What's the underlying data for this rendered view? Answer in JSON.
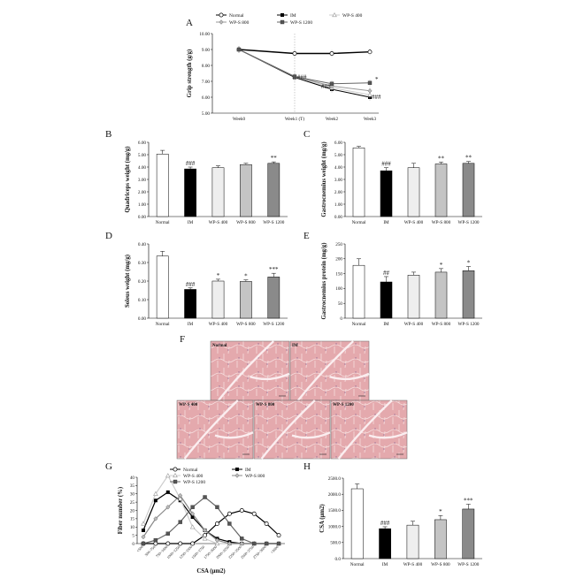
{
  "panels": {
    "A": {
      "letter": "A"
    },
    "B": {
      "letter": "B"
    },
    "C": {
      "letter": "C"
    },
    "D": {
      "letter": "D"
    },
    "E": {
      "letter": "E"
    },
    "F": {
      "letter": "F"
    },
    "G": {
      "letter": "G"
    },
    "H": {
      "letter": "H"
    }
  },
  "histology": {
    "letter": "F",
    "labels": [
      "Normal",
      "IM",
      "WP-S 400",
      "WP-S 800",
      "WP-S 1200"
    ]
  },
  "chart_data": [
    {
      "id": "A",
      "type": "line",
      "ylabel": "Grip strength (g/g)",
      "x": [
        "Week0",
        "Week1 (T)",
        "Week2",
        "Week3"
      ],
      "ylim": [
        5.0,
        10.0
      ],
      "yticks": [
        "5.00",
        "6.00",
        "7.00",
        "8.00",
        "9.00",
        "10.00"
      ],
      "legend_position": "top",
      "series": [
        {
          "name": "Normal",
          "values": [
            9.0,
            8.75,
            8.75,
            8.85
          ],
          "color": "#ffffff",
          "marker": "circle-open"
        },
        {
          "name": "IM",
          "values": [
            9.0,
            7.25,
            6.5,
            6.0
          ],
          "color": "#000000",
          "marker": "square-filled"
        },
        {
          "name": "WP-S 400",
          "values": [
            9.0,
            7.3,
            6.6,
            6.15
          ],
          "color": "#bbbbbb",
          "marker": "triangle-open"
        },
        {
          "name": "WP-S 800",
          "values": [
            9.0,
            7.3,
            6.7,
            6.4
          ],
          "color": "#999999",
          "marker": "diamond"
        },
        {
          "name": "WP-S 1200",
          "values": [
            9.0,
            7.3,
            6.85,
            6.9
          ],
          "color": "#666666",
          "marker": "square-grey"
        }
      ],
      "annotations": [
        "###",
        "###",
        "###",
        "*"
      ]
    },
    {
      "id": "B",
      "type": "bar",
      "ylabel": "Quadriceps weight (mg/g)",
      "categories": [
        "Normal",
        "IM",
        "WP-S 400",
        "WP-S 800",
        "WP-S 1200"
      ],
      "values": [
        5.05,
        3.85,
        3.95,
        4.2,
        4.3
      ],
      "errors": [
        0.3,
        0.15,
        0.15,
        0.1,
        0.12
      ],
      "ylim": [
        0,
        6
      ],
      "yticks": [
        "0.00",
        "1.00",
        "2.00",
        "3.00",
        "4.00",
        "5.00",
        "6.00"
      ],
      "sig": [
        "",
        "###",
        "",
        "",
        "**"
      ]
    },
    {
      "id": "C",
      "type": "bar",
      "ylabel": "Gastrocnemius weight (mg/g)",
      "categories": [
        "Normal",
        "IM",
        "WP-S 400",
        "WP-S 800",
        "WP-S 1200"
      ],
      "values": [
        5.55,
        3.7,
        3.95,
        4.25,
        4.3
      ],
      "errors": [
        0.12,
        0.25,
        0.35,
        0.15,
        0.15
      ],
      "ylim": [
        0,
        6
      ],
      "yticks": [
        "0.00",
        "1.00",
        "2.00",
        "3.00",
        "4.00",
        "5.00",
        "6.00"
      ],
      "sig": [
        "",
        "###",
        "",
        "**",
        "**"
      ]
    },
    {
      "id": "D",
      "type": "bar",
      "ylabel": "Soleus weight (mg/g)",
      "categories": [
        "Normal",
        "IM",
        "WP-S 400",
        "WP-S 800",
        "WP-S 1200"
      ],
      "values": [
        0.335,
        0.155,
        0.2,
        0.198,
        0.222
      ],
      "errors": [
        0.025,
        0.008,
        0.01,
        0.008,
        0.02
      ],
      "ylim": [
        0,
        0.4
      ],
      "yticks": [
        "0.00",
        "0.10",
        "0.20",
        "0.30",
        "0.40"
      ],
      "sig": [
        "",
        "###",
        "*",
        "*",
        "***"
      ]
    },
    {
      "id": "E",
      "type": "bar",
      "ylabel": "Gastrocnemius protein (mg/g)",
      "categories": [
        "Normal",
        "IM",
        "WP-S 400",
        "WP-S 800",
        "WP-S 1200"
      ],
      "values": [
        178,
        122,
        145,
        155,
        160
      ],
      "errors": [
        22,
        18,
        10,
        12,
        14
      ],
      "ylim": [
        0,
        250
      ],
      "yticks": [
        "0",
        "50",
        "100",
        "150",
        "200",
        "250"
      ],
      "sig": [
        "",
        "##",
        "",
        "*",
        "*"
      ]
    },
    {
      "id": "G",
      "type": "line",
      "ylabel": "Fiber number (%)",
      "xlabel": "CSA (μm2)",
      "x": [
        "<500",
        "500~750",
        "750~1000",
        "1000~1250",
        "1250~1500",
        "1500~1750",
        "1750~2000",
        "2000~2250",
        "2250~2500",
        "2500~2750",
        "2750~3000",
        ">3000"
      ],
      "ylim": [
        0,
        40
      ],
      "yticks": [
        "0",
        "5",
        "10",
        "15",
        "20",
        "25",
        "30",
        "35",
        "40"
      ],
      "legend_position": "top",
      "series": [
        {
          "name": "Normal",
          "values": [
            0,
            0,
            0,
            0,
            0,
            5,
            12,
            18,
            20,
            18,
            12,
            5
          ],
          "color": "#ffffff",
          "marker": "circle-open"
        },
        {
          "name": "IM",
          "values": [
            8,
            26,
            31,
            26,
            16,
            8,
            3,
            1,
            0,
            0,
            0,
            0
          ],
          "color": "#000000",
          "marker": "square-filled"
        },
        {
          "name": "WP-S 400",
          "values": [
            12,
            30,
            41,
            27,
            10,
            3,
            0,
            0,
            0,
            0,
            0,
            0
          ],
          "color": "#cccccc",
          "marker": "triangle-open"
        },
        {
          "name": "WP-S 800",
          "values": [
            4,
            15,
            22,
            29,
            18,
            8,
            2,
            0,
            0,
            0,
            0,
            0
          ],
          "color": "#888888",
          "marker": "diamond"
        },
        {
          "name": "WP-S 1200",
          "values": [
            0,
            2,
            6,
            13,
            22,
            28,
            22,
            12,
            3,
            0,
            0,
            0
          ],
          "color": "#666666",
          "marker": "square-grey"
        }
      ]
    },
    {
      "id": "H",
      "type": "bar",
      "ylabel": "CSA (μm2)",
      "categories": [
        "Normal",
        "IM",
        "WP-S 400",
        "WP-S 800",
        "WP-S 1200"
      ],
      "values": [
        2170,
        930,
        1040,
        1210,
        1540
      ],
      "errors": [
        150,
        60,
        120,
        130,
        150
      ],
      "ylim": [
        0,
        2500
      ],
      "yticks": [
        "0.0",
        "500.0",
        "1000.0",
        "1500.0",
        "2000.0",
        "2500.0"
      ],
      "sig": [
        "",
        "###",
        "",
        "*",
        "***"
      ]
    }
  ]
}
